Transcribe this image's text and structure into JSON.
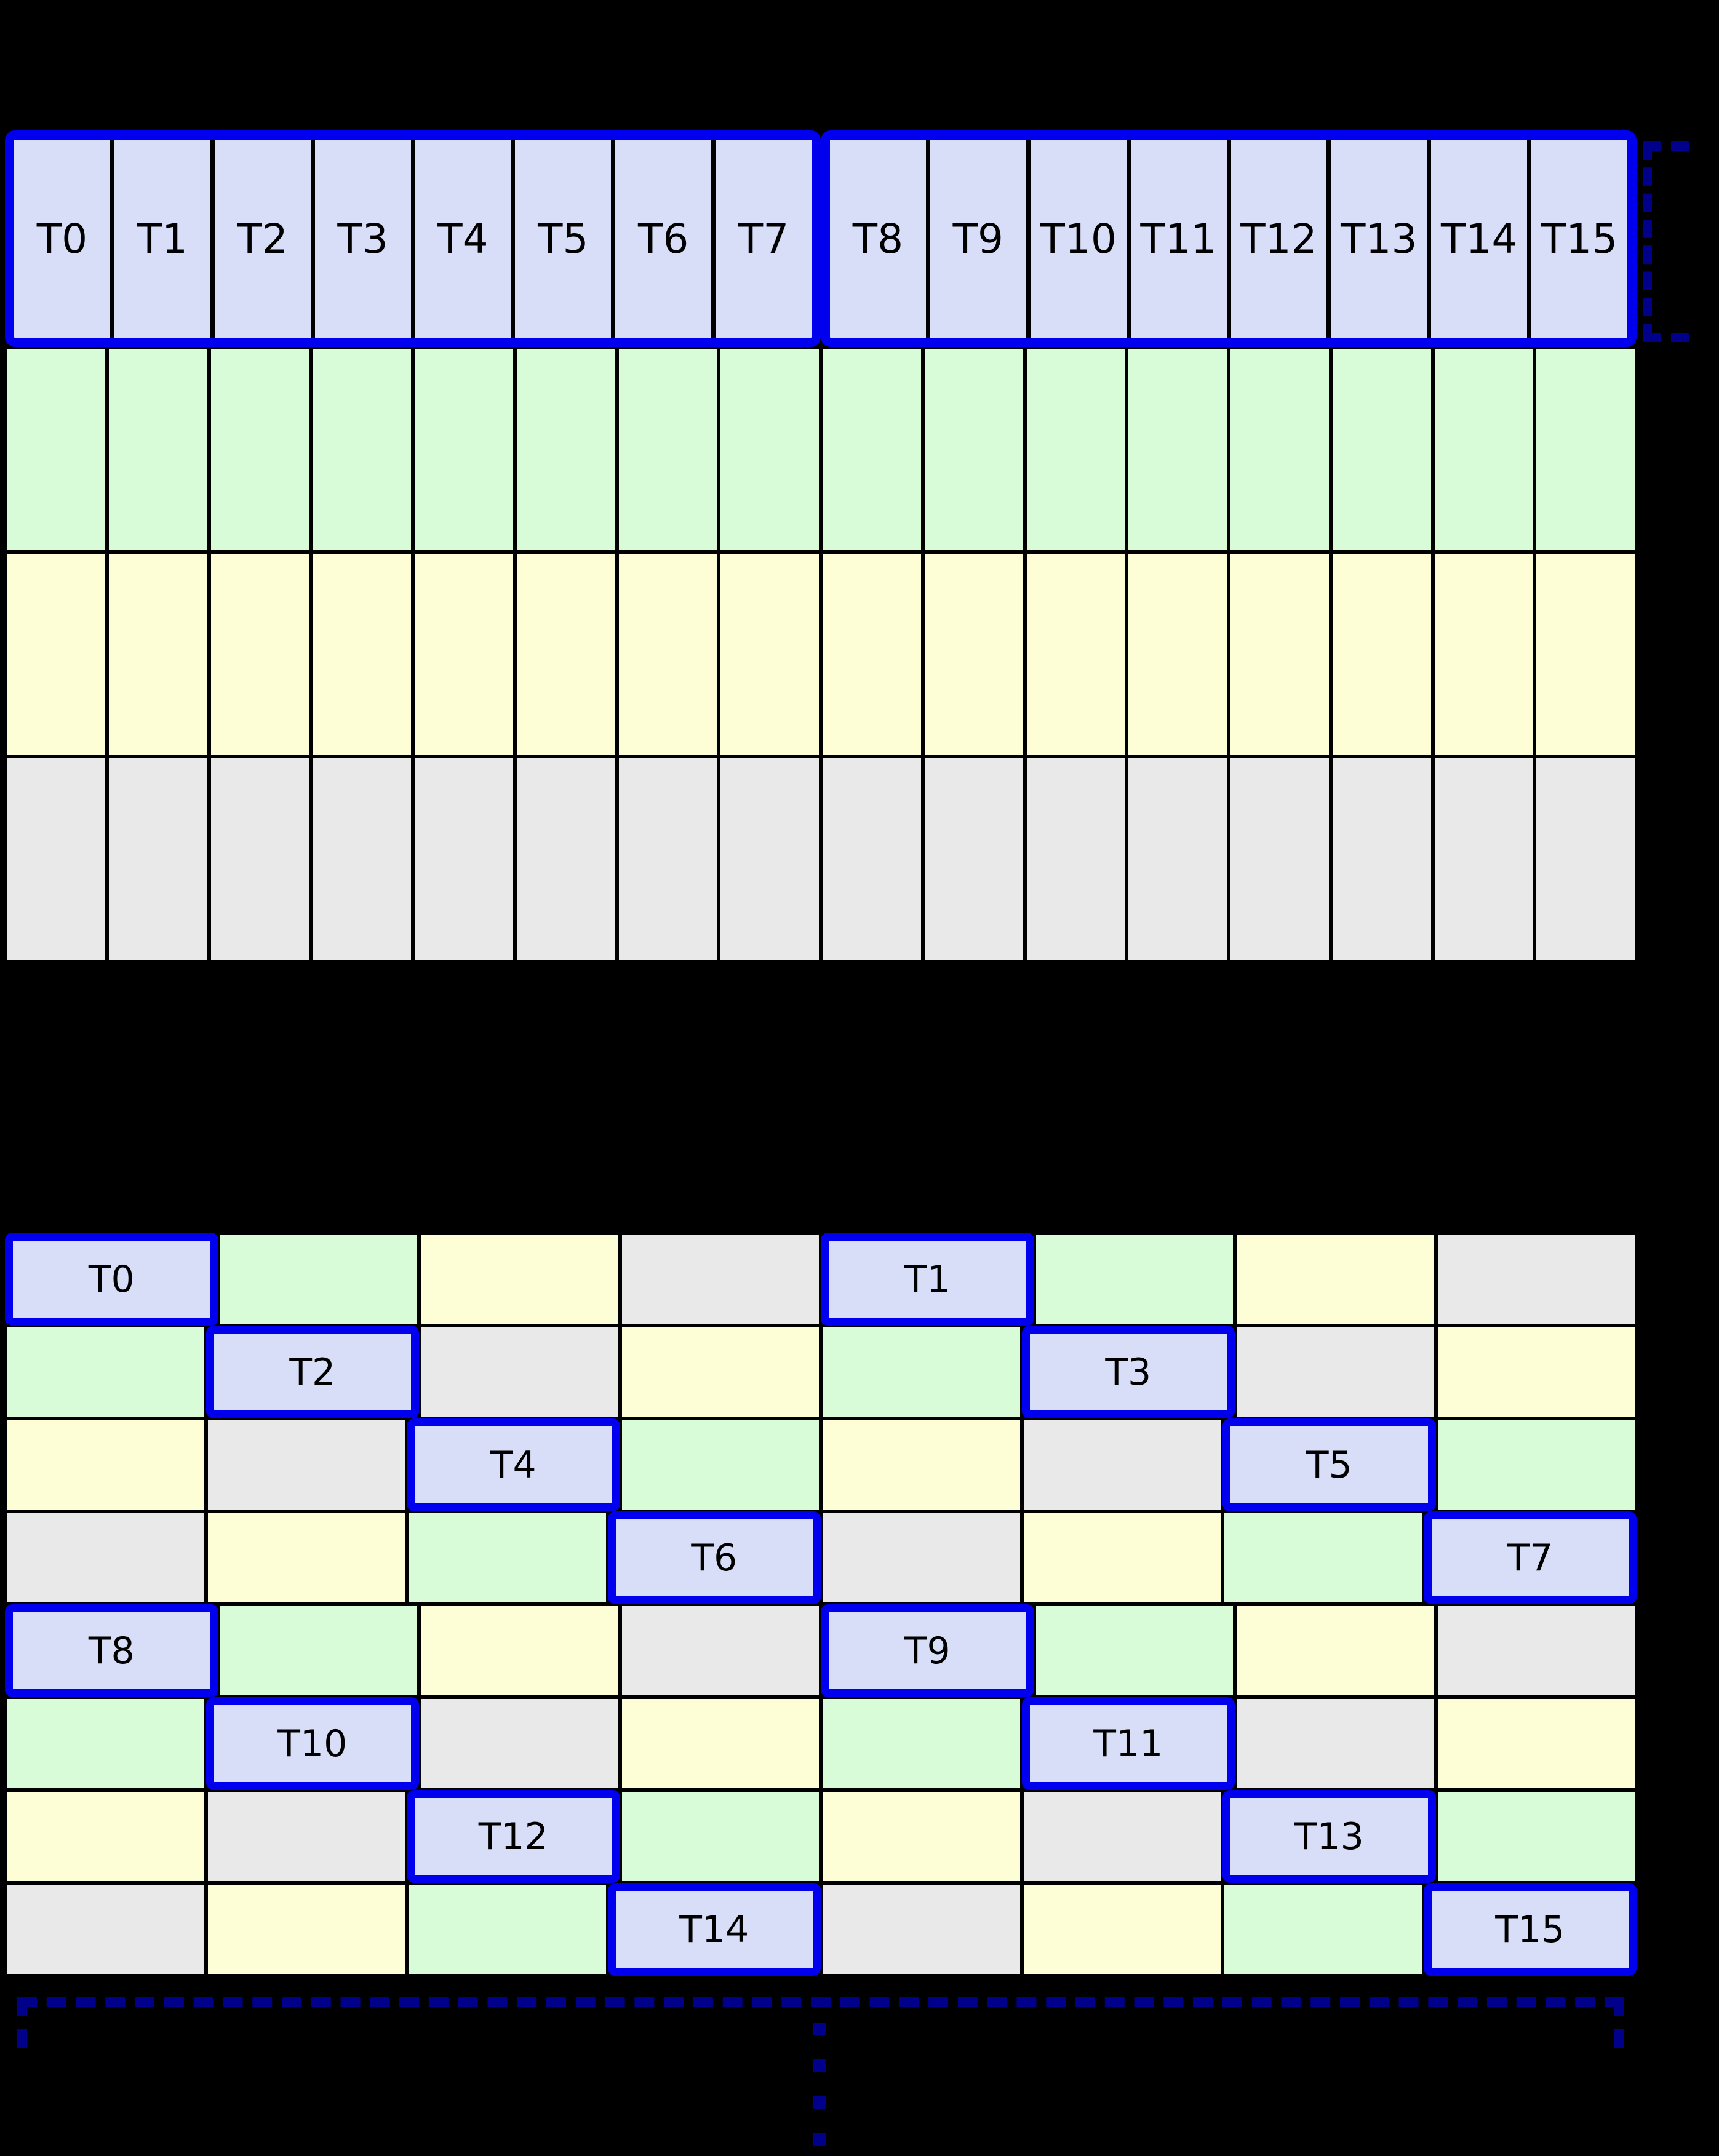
{
  "colors": {
    "background": "#000000",
    "thread_cell_fill": "#d8def8",
    "row2_fill_green": "#d8fcd8",
    "row3_fill_yellow": "#fdfdd6",
    "row4_fill_gray": "#e9e9e9",
    "thread_outline_blue": "#0000ee",
    "bracket_navy": "#00008b",
    "gridline_black": "#000000"
  },
  "icons": {
    "right_bracket": "dashed-row-span-bracket",
    "bottom_bracket": "dashed-grid-span-bracket",
    "ellipsis": "vertical-ellipsis"
  },
  "top_grid": {
    "columns": 16,
    "warps": [
      {
        "labels": [
          "T0",
          "T1",
          "T2",
          "T3",
          "T4",
          "T5",
          "T6",
          "T7"
        ]
      },
      {
        "labels": [
          "T8",
          "T9",
          "T10",
          "T11",
          "T12",
          "T13",
          "T14",
          "T15"
        ]
      }
    ],
    "data_rows": [
      "green",
      "yellow",
      "gray"
    ]
  },
  "bottom_grid": {
    "columns": 8,
    "rows": [
      [
        {
          "color": "blue",
          "label": "T0"
        },
        {
          "color": "green"
        },
        {
          "color": "yellow"
        },
        {
          "color": "gray"
        },
        {
          "color": "blue",
          "label": "T1"
        },
        {
          "color": "green"
        },
        {
          "color": "yellow"
        },
        {
          "color": "gray"
        }
      ],
      [
        {
          "color": "green"
        },
        {
          "color": "blue",
          "label": "T2"
        },
        {
          "color": "gray"
        },
        {
          "color": "yellow"
        },
        {
          "color": "green"
        },
        {
          "color": "blue",
          "label": "T3"
        },
        {
          "color": "gray"
        },
        {
          "color": "yellow"
        }
      ],
      [
        {
          "color": "yellow"
        },
        {
          "color": "gray"
        },
        {
          "color": "blue",
          "label": "T4"
        },
        {
          "color": "green"
        },
        {
          "color": "yellow"
        },
        {
          "color": "gray"
        },
        {
          "color": "blue",
          "label": "T5"
        },
        {
          "color": "green"
        }
      ],
      [
        {
          "color": "gray"
        },
        {
          "color": "yellow"
        },
        {
          "color": "green"
        },
        {
          "color": "blue",
          "label": "T6"
        },
        {
          "color": "gray"
        },
        {
          "color": "yellow"
        },
        {
          "color": "green"
        },
        {
          "color": "blue",
          "label": "T7"
        }
      ],
      [
        {
          "color": "blue",
          "label": "T8"
        },
        {
          "color": "green"
        },
        {
          "color": "yellow"
        },
        {
          "color": "gray"
        },
        {
          "color": "blue",
          "label": "T9"
        },
        {
          "color": "green"
        },
        {
          "color": "yellow"
        },
        {
          "color": "gray"
        }
      ],
      [
        {
          "color": "green"
        },
        {
          "color": "blue",
          "label": "T10"
        },
        {
          "color": "gray"
        },
        {
          "color": "yellow"
        },
        {
          "color": "green"
        },
        {
          "color": "blue",
          "label": "T11"
        },
        {
          "color": "gray"
        },
        {
          "color": "yellow"
        }
      ],
      [
        {
          "color": "yellow"
        },
        {
          "color": "gray"
        },
        {
          "color": "blue",
          "label": "T12"
        },
        {
          "color": "green"
        },
        {
          "color": "yellow"
        },
        {
          "color": "gray"
        },
        {
          "color": "blue",
          "label": "T13"
        },
        {
          "color": "green"
        }
      ],
      [
        {
          "color": "gray"
        },
        {
          "color": "yellow"
        },
        {
          "color": "green"
        },
        {
          "color": "blue",
          "label": "T14"
        },
        {
          "color": "gray"
        },
        {
          "color": "yellow"
        },
        {
          "color": "green"
        },
        {
          "color": "blue",
          "label": "T15"
        }
      ]
    ]
  },
  "ellipsis_dot_count": 4
}
